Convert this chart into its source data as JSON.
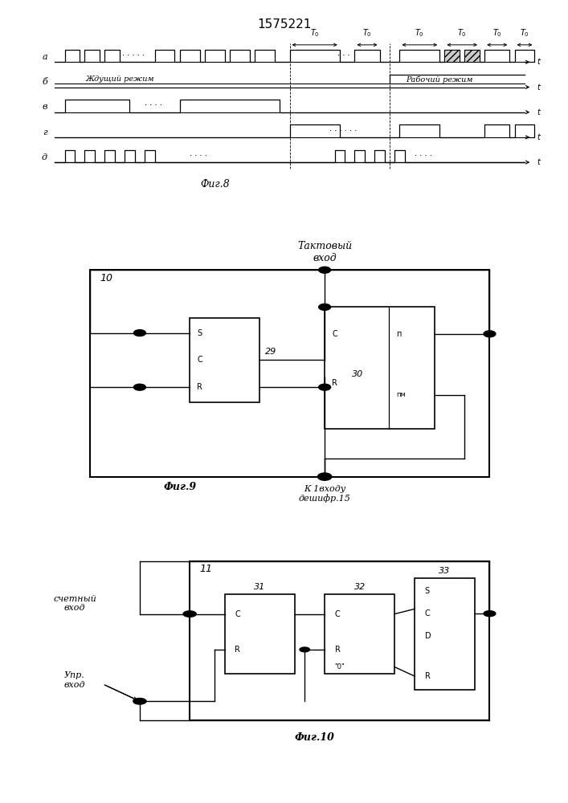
{
  "title": "1575221",
  "bg_color": "#ffffff",
  "fig8_label": "Фиг.8",
  "fig9_label": "Фиг.9",
  "fig10_label": "Фиг.10",
  "fig9_title": "Тактовый\nвход",
  "fig9_block_label": "К 1входу\nдешифр.15",
  "fig9_num": "10",
  "fig9_blk29": "29",
  "fig9_blk30": "30",
  "fig10_num": "11",
  "fig10_blk31": "31",
  "fig10_blk32": "32",
  "fig10_blk33": "33",
  "fig10_label_left1": "счетный\nвход",
  "fig10_label_left2": "Упр.\nвход",
  "waveform_labels": [
    "а",
    "б",
    "в",
    "г",
    "д"
  ],
  "mode_waiting": "Ждущий режим",
  "mode_working": "Рабочий режим"
}
